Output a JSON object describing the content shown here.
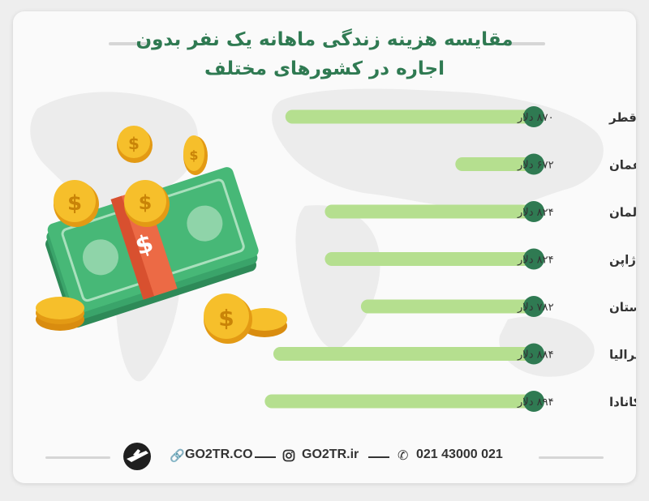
{
  "title_lines": [
    "مقایسه هزینه زندگی ماهانه یک نفر بدون",
    "اجاره در کشورهای مختلف"
  ],
  "chart_data": {
    "type": "bar",
    "orientation": "horizontal",
    "title": "مقایسه هزینه زندگی ماهانه یک نفر بدون اجاره در کشورهای مختلف",
    "categories": [
      "قطر",
      "عمان",
      "آلمان",
      "ژاپن",
      "انگلستان",
      "استرالیا",
      "کانادا"
    ],
    "values": [
      870,
      672,
      824,
      824,
      782,
      884,
      894
    ],
    "value_labels": [
      "۸۷۰ دلار",
      "۶۷۲ دلار",
      "۸۲۴ دلار",
      "۸۲۴ دلار",
      "۷۸۲ دلار",
      "۸۸۴ دلار",
      "۸۹۴ دلار"
    ],
    "bar_color": "#b5df8f",
    "marker_color": "#2f7a52"
  },
  "footer": {
    "phone": "021 43000 021",
    "instagram": "GO2TR.ir",
    "website": "GO2TR.CO"
  },
  "icons": [
    "phone-icon",
    "instagram-icon",
    "link-icon",
    "airplane-logo-icon",
    "money-stack-illustration"
  ]
}
